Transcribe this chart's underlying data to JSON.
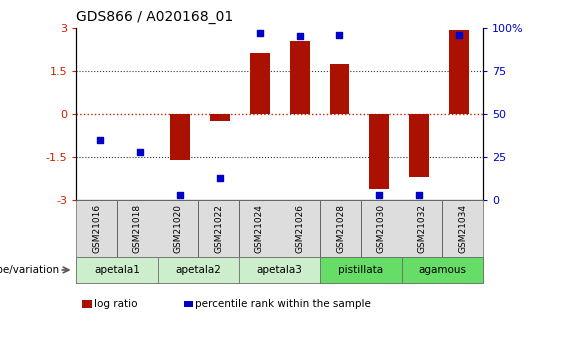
{
  "title": "GDS866 / A020168_01",
  "samples": [
    "GSM21016",
    "GSM21018",
    "GSM21020",
    "GSM21022",
    "GSM21024",
    "GSM21026",
    "GSM21028",
    "GSM21030",
    "GSM21032",
    "GSM21034"
  ],
  "log_ratio": [
    0.0,
    0.0,
    -1.6,
    -0.25,
    2.1,
    2.55,
    1.75,
    -2.6,
    -2.2,
    2.9
  ],
  "percentile_rank": [
    35,
    28,
    3,
    13,
    97,
    95,
    96,
    3,
    3,
    96
  ],
  "ylim": [
    -3,
    3
  ],
  "y2lim": [
    0,
    100
  ],
  "bar_color": "#aa1100",
  "dot_color": "#0000cc",
  "zero_line_color": "#cc2200",
  "dotted_line_color": "#333333",
  "bg_color": "#ffffff",
  "bar_width": 0.5,
  "group_defs": [
    {
      "label": "apetala1",
      "start": 0,
      "end": 2,
      "color": "#cceecc"
    },
    {
      "label": "apetala2",
      "start": 2,
      "end": 4,
      "color": "#cceecc"
    },
    {
      "label": "apetala3",
      "start": 4,
      "end": 6,
      "color": "#cceecc"
    },
    {
      "label": "pistillata",
      "start": 6,
      "end": 8,
      "color": "#66dd66"
    },
    {
      "label": "agamous",
      "start": 8,
      "end": 10,
      "color": "#66dd66"
    }
  ],
  "genotype_label": "genotype/variation",
  "legend_bar_label": "log ratio",
  "legend_dot_label": "percentile rank within the sample"
}
